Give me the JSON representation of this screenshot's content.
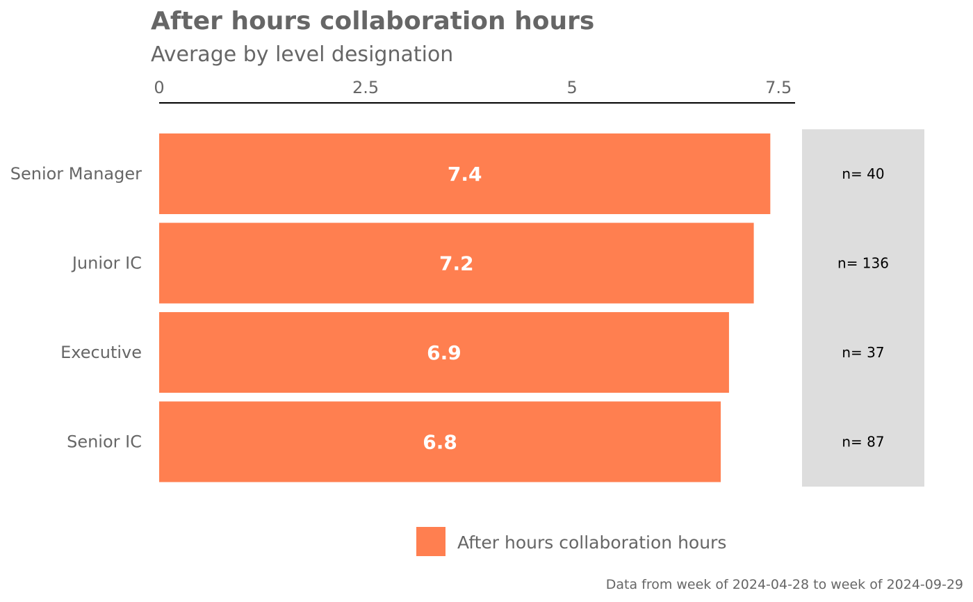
{
  "chart_data": {
    "type": "bar",
    "orientation": "horizontal",
    "title": "After hours collaboration hours",
    "subtitle": "Average by level designation",
    "categories": [
      "Senior Manager",
      "Junior IC",
      "Executive",
      "Senior IC"
    ],
    "series": [
      {
        "name": "After hours collaboration hours",
        "values": [
          7.4,
          7.2,
          6.9,
          6.8
        ]
      }
    ],
    "value_labels": [
      "7.4",
      "7.2",
      "6.9",
      "6.8"
    ],
    "n_labels": [
      "n= 40",
      "n= 136",
      "n= 37",
      "n= 87"
    ],
    "x_ticks": [
      0,
      2.5,
      5,
      7.5
    ],
    "x_tick_labels": [
      "0",
      "2.5",
      "5",
      "7.5"
    ],
    "xlim": [
      0,
      7.7
    ],
    "axis_position": "top",
    "grid": false,
    "legend_position": "bottom",
    "caption": "Data from week of 2024-04-28 to week of 2024-09-29",
    "colors": {
      "bar": "#FF7F50",
      "n_panel": "#DDDDDD",
      "axis_line": "#000000"
    }
  }
}
